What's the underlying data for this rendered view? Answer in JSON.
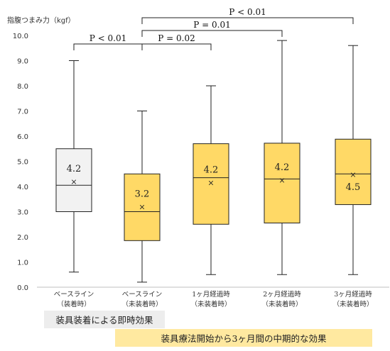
{
  "chart_data": {
    "type": "box",
    "ylabel": "指腹つまみ力（kgf）",
    "ylim": [
      0,
      10
    ],
    "yticks": [
      "0.0",
      "1.0",
      "2.0",
      "3.0",
      "4.0",
      "5.0",
      "6.0",
      "7.0",
      "8.0",
      "9.0",
      "10.0"
    ],
    "grid": false,
    "boxes": [
      {
        "label": [
          "ベースライン",
          "（装着時）"
        ],
        "min": 0.6,
        "q1": 3.0,
        "median": 4.05,
        "q3": 5.5,
        "max": 9.0,
        "mean": 4.2,
        "mean_label": "4.2",
        "fill": "#f2f2f2"
      },
      {
        "label": [
          "ベースライン",
          "（未装着時）"
        ],
        "min": 0.2,
        "q1": 1.85,
        "median": 3.0,
        "q3": 4.5,
        "max": 7.0,
        "mean": 3.2,
        "mean_label": "3.2",
        "fill": "#ffd966"
      },
      {
        "label": [
          "1ヶ月経過時",
          "（未装着時）"
        ],
        "min": 0.5,
        "q1": 2.5,
        "median": 4.35,
        "q3": 5.7,
        "max": 8.0,
        "mean": 4.15,
        "mean_label": "4.2",
        "fill": "#ffd966"
      },
      {
        "label": [
          "2ヶ月経過時",
          "（未装着時）"
        ],
        "min": 0.5,
        "q1": 2.55,
        "median": 4.3,
        "q3": 5.72,
        "max": 9.8,
        "mean": 4.25,
        "mean_label": "4.2",
        "fill": "#ffd966"
      },
      {
        "label": [
          "3ヶ月経過時",
          "（未装着時）"
        ],
        "min": 0.5,
        "q1": 3.28,
        "median": 4.5,
        "q3": 5.88,
        "max": 9.6,
        "mean": 4.48,
        "mean_label": "4.5",
        "fill": "#ffd966"
      }
    ],
    "comparisons": [
      {
        "from": 0,
        "to": 1,
        "label": "P < 0.01",
        "level": 1
      },
      {
        "from": 1,
        "to": 2,
        "label": "P = 0.02",
        "level": 1
      },
      {
        "from": 1,
        "to": 3,
        "label": "P = 0.01",
        "level": 2
      },
      {
        "from": 1,
        "to": 4,
        "label": "P < 0.01",
        "level": 3
      }
    ]
  },
  "bands": {
    "immediate": "装具装着による即時効果",
    "midterm": "装具療法開始から3ヶ月間の中期的な効果"
  }
}
